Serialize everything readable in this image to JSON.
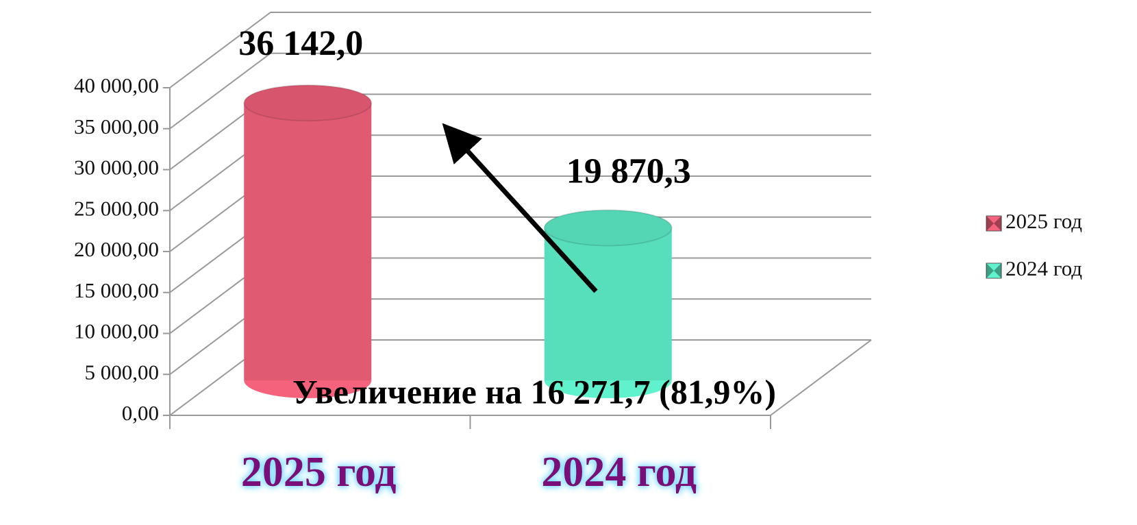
{
  "chart_data": {
    "type": "bar3d",
    "categories": [
      "2025 год",
      "2024 год"
    ],
    "series": [
      {
        "name": "2025 год",
        "color": "#f4627c",
        "values": [
          36142.0,
          null
        ],
        "value_labels": [
          "36 142,0",
          null
        ]
      },
      {
        "name": "2024 год",
        "color": "#5ff2cc",
        "values": [
          null,
          19870.3
        ],
        "value_labels": [
          null,
          "19 870,3"
        ]
      }
    ],
    "ylim": [
      0,
      40000
    ],
    "yticks": [
      {
        "value": 0,
        "label": "0,00"
      },
      {
        "value": 5000,
        "label": "5 000,00"
      },
      {
        "value": 10000,
        "label": "10 000,00"
      },
      {
        "value": 15000,
        "label": "15 000,00"
      },
      {
        "value": 20000,
        "label": "20 000,00"
      },
      {
        "value": 25000,
        "label": "25 000,00"
      },
      {
        "value": 30000,
        "label": "30 000,00"
      },
      {
        "value": 35000,
        "label": "35 000,00"
      },
      {
        "value": 40000,
        "label": "40 000,00"
      }
    ],
    "grid": true,
    "legend": "right",
    "annotations": [
      "Увеличение на 16 271,7 (81,9%)"
    ]
  }
}
